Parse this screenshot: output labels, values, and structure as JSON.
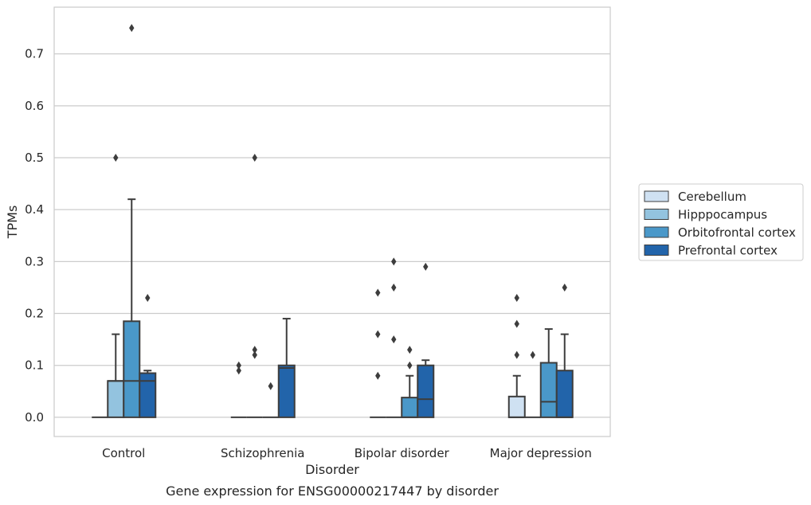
{
  "chart_data": {
    "type": "box",
    "xlabel": "Disorder",
    "ylabel": "TPMs",
    "caption": "Gene expression for ENSG00000217447 by disorder",
    "categories": [
      "Control",
      "Schizophrenia",
      "Bipolar disorder",
      "Major depression"
    ],
    "ylim": [
      -0.037,
      0.79
    ],
    "yticks": [
      "0.0",
      "0.1",
      "0.2",
      "0.3",
      "0.4",
      "0.5",
      "0.6",
      "0.7"
    ],
    "grid": true,
    "legend_position": "right",
    "series": [
      {
        "name": "Cerebellum",
        "color": "#cfe1f2",
        "boxes": [
          {
            "q1": 0,
            "median": 0,
            "q3": 0,
            "whisker_low": 0,
            "whisker_high": 0,
            "outliers": []
          },
          {
            "q1": 0,
            "median": 0,
            "q3": 0,
            "whisker_low": 0,
            "whisker_high": 0,
            "outliers": [
              0.09,
              0.1
            ]
          },
          {
            "q1": 0,
            "median": 0,
            "q3": 0,
            "whisker_low": 0,
            "whisker_high": 0,
            "outliers": [
              0.08,
              0.16,
              0.24
            ]
          },
          {
            "q1": 0,
            "median": 0,
            "q3": 0.04,
            "whisker_low": 0,
            "whisker_high": 0.08,
            "outliers": [
              0.12,
              0.18,
              0.23
            ]
          }
        ]
      },
      {
        "name": "Hipppocampus",
        "color": "#93c3df",
        "boxes": [
          {
            "q1": 0,
            "median": 0.07,
            "q3": 0.07,
            "whisker_low": 0,
            "whisker_high": 0.16,
            "outliers": [
              0.5
            ]
          },
          {
            "q1": 0,
            "median": 0,
            "q3": 0,
            "whisker_low": 0,
            "whisker_high": 0,
            "outliers": [
              0.12,
              0.13,
              0.5
            ]
          },
          {
            "q1": 0,
            "median": 0,
            "q3": 0,
            "whisker_low": 0,
            "whisker_high": 0,
            "outliers": [
              0.15,
              0.25,
              0.3
            ]
          },
          {
            "q1": 0,
            "median": 0,
            "q3": 0,
            "whisker_low": 0,
            "whisker_high": 0,
            "outliers": [
              0.12
            ]
          }
        ]
      },
      {
        "name": "Orbitofrontal cortex",
        "color": "#4a98c9",
        "boxes": [
          {
            "q1": 0,
            "median": 0.07,
            "q3": 0.185,
            "whisker_low": 0,
            "whisker_high": 0.42,
            "outliers": [
              0.75
            ]
          },
          {
            "q1": 0,
            "median": 0,
            "q3": 0,
            "whisker_low": 0,
            "whisker_high": 0,
            "outliers": [
              0.06
            ]
          },
          {
            "q1": 0,
            "median": 0,
            "q3": 0.038,
            "whisker_low": 0,
            "whisker_high": 0.08,
            "outliers": [
              0.1,
              0.13
            ]
          },
          {
            "q1": 0,
            "median": 0.03,
            "q3": 0.105,
            "whisker_low": 0,
            "whisker_high": 0.17,
            "outliers": []
          }
        ]
      },
      {
        "name": "Prefrontal cortex",
        "color": "#2264aa",
        "boxes": [
          {
            "q1": 0,
            "median": 0.07,
            "q3": 0.085,
            "whisker_low": 0,
            "whisker_high": 0.09,
            "outliers": [
              0.23
            ]
          },
          {
            "q1": 0,
            "median": 0.095,
            "q3": 0.1,
            "whisker_low": 0,
            "whisker_high": 0.19,
            "outliers": []
          },
          {
            "q1": 0,
            "median": 0.035,
            "q3": 0.1,
            "whisker_low": 0,
            "whisker_high": 0.11,
            "outliers": [
              0.29
            ]
          },
          {
            "q1": 0,
            "median": 0,
            "q3": 0.09,
            "whisker_low": 0,
            "whisker_high": 0.16,
            "outliers": [
              0.25
            ]
          }
        ]
      }
    ]
  }
}
